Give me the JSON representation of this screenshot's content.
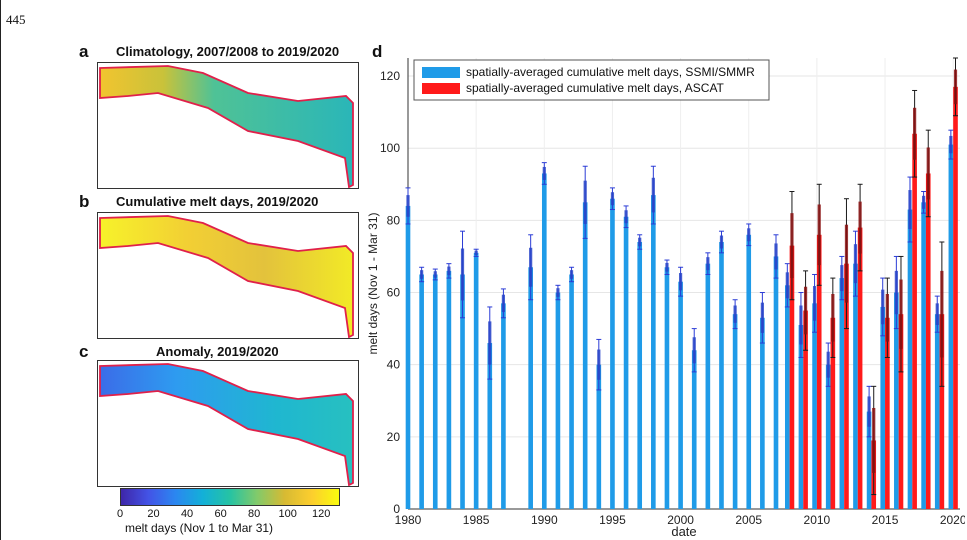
{
  "page_number": "445",
  "panels": [
    {
      "letter": "a",
      "title": "Climatology, 2007/2008 to 2019/2020"
    },
    {
      "letter": "b",
      "title": "Cumulative melt days, 2019/2020"
    },
    {
      "letter": "c",
      "title": "Anomaly, 2019/2020"
    }
  ],
  "colorbar": {
    "ticks": [
      "0",
      "20",
      "40",
      "60",
      "80",
      "100",
      "120"
    ],
    "label": "melt days (Nov 1 to Mar 31)",
    "range": [
      0,
      130
    ]
  },
  "chart_panel_letter": "d",
  "chart_data": {
    "type": "bar",
    "xlabel": "date",
    "ylabel": "melt days (Nov 1 - Mar 31)",
    "ylim": [
      0,
      125
    ],
    "xlim": [
      1980,
      2020.5
    ],
    "yticks": [
      "0",
      "20",
      "40",
      "60",
      "80",
      "100",
      "120"
    ],
    "xticks": [
      "1980",
      "1985",
      "1990",
      "1995",
      "2000",
      "2005",
      "2010",
      "2015",
      "2020"
    ],
    "grid": true,
    "legend_position": "top-left",
    "series": [
      {
        "name": "spatially-averaged cumulative melt days, SSMI/SMMR",
        "color": "#1f9be8",
        "x": [
          1980,
          1981,
          1982,
          1983,
          1984,
          1985,
          1986,
          1987,
          1989,
          1990,
          1991,
          1992,
          1993,
          1994,
          1995,
          1996,
          1997,
          1998,
          1999,
          2000,
          2001,
          2002,
          2003,
          2004,
          2005,
          2006,
          2007,
          2008,
          2009,
          2010,
          2011,
          2012,
          2013,
          2014,
          2015,
          2016,
          2017,
          2018,
          2019,
          2020
        ],
        "values": [
          84,
          65,
          65,
          66,
          65,
          71,
          46,
          57,
          67,
          93,
          60,
          65,
          85,
          40,
          86,
          81,
          74,
          87,
          67,
          63,
          44,
          68,
          74,
          54,
          76,
          53,
          70,
          62,
          51,
          57,
          40,
          64,
          68,
          27,
          56,
          60,
          83,
          85,
          54,
          101
        ],
        "err": [
          5,
          2,
          1.5,
          2,
          12,
          1,
          10,
          4,
          9,
          3,
          2,
          2,
          10,
          7,
          3,
          3,
          2,
          8,
          2,
          4,
          6,
          3,
          3,
          4,
          3,
          7,
          6,
          6,
          9,
          8,
          6,
          6,
          9,
          7,
          8,
          10,
          9,
          3,
          5,
          4
        ]
      },
      {
        "name": "spatially-averaged cumulative melt days, ASCAT",
        "color": "#ff1a1a",
        "x": [
          2008,
          2009,
          2010,
          2011,
          2012,
          2013,
          2014,
          2015,
          2016,
          2017,
          2018,
          2019,
          2020
        ],
        "values": [
          73,
          55,
          76,
          53,
          68,
          78,
          19,
          53,
          54,
          104,
          93,
          54,
          117
        ],
        "err": [
          15,
          11,
          14,
          11,
          18,
          12,
          15,
          11,
          16,
          12,
          12,
          20,
          8
        ]
      }
    ]
  }
}
